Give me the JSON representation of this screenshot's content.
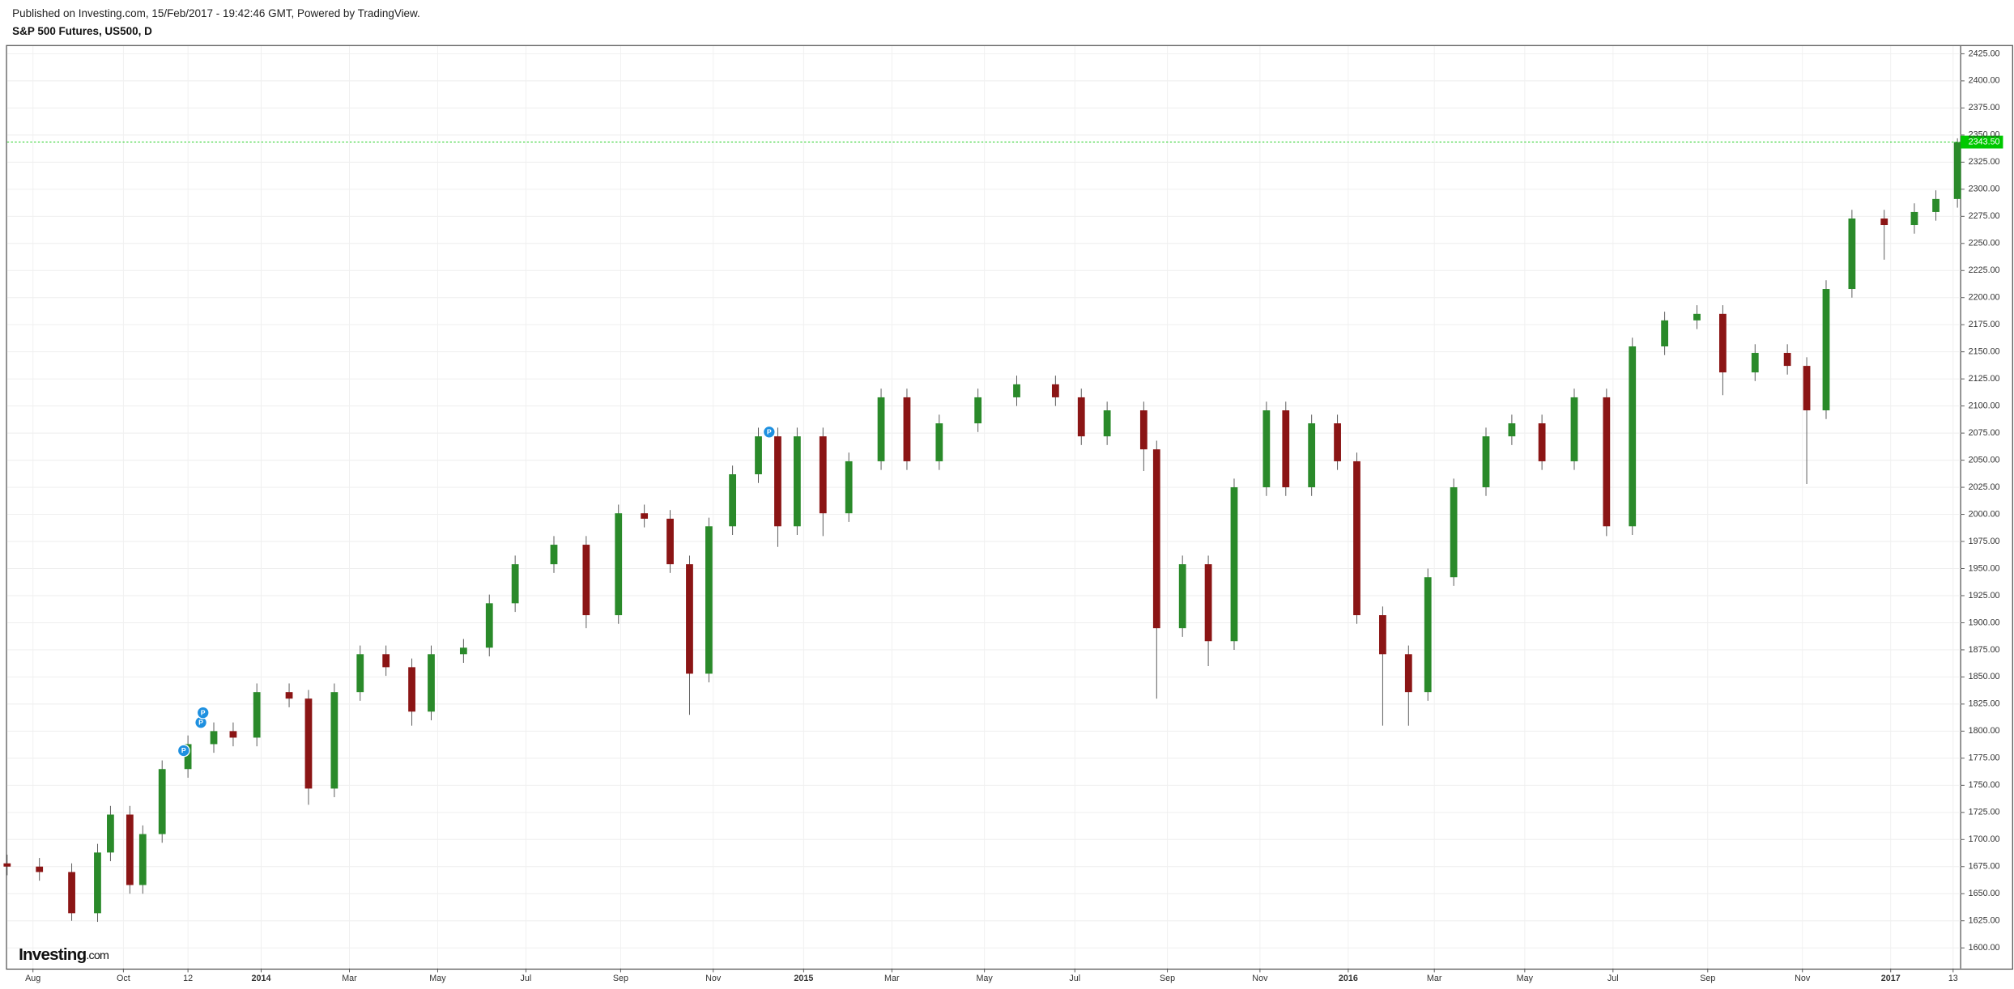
{
  "header": {
    "published": "Published on Investing.com, 15/Feb/2017 - 19:42:46 GMT, Powered by TradingView.",
    "symbol": "S&P 500 Futures, US500, D",
    "logo": "Investing",
    "logo_suffix": ".com"
  },
  "chart_data": {
    "type": "candlestick",
    "grid": true,
    "up_color": "#2a8a2a",
    "down_color": "#8b1515",
    "x": [
      0,
      15,
      30,
      42,
      48,
      57,
      63,
      72,
      84,
      96,
      105,
      116,
      131,
      140,
      152,
      164,
      176,
      188,
      197,
      212,
      224,
      236,
      254,
      269,
      284,
      296,
      308,
      317,
      326,
      337,
      349,
      358,
      367,
      379,
      391,
      406,
      418,
      433,
      451,
      469,
      487,
      499,
      511,
      528,
      534,
      546,
      558,
      570,
      585,
      594,
      606,
      618,
      627,
      639,
      651,
      660,
      672,
      687,
      699,
      713,
      728,
      743,
      755,
      770,
      785,
      797,
      812,
      827,
      836,
      845,
      857,
      872,
      886,
      896,
      906
    ],
    "open": [
      1678,
      1675,
      1670,
      1632,
      1688,
      1723,
      1658,
      1705,
      1765,
      1788,
      1800,
      1794,
      1836,
      1830,
      1747,
      1836,
      1871,
      1859,
      1818,
      1871,
      1877,
      1918,
      1954,
      1972,
      1907,
      2001,
      1996,
      1954,
      1853,
      1989,
      2037,
      2072,
      1989,
      2072,
      2001,
      2049,
      2108,
      2049,
      2084,
      2108,
      2120,
      2108,
      2072,
      2096,
      2060,
      1895,
      1954,
      1883,
      2025,
      2096,
      2025,
      2084,
      2049,
      1907,
      1871,
      1836,
      1942,
      2025,
      2072,
      2084,
      2049,
      2108,
      1989,
      2155,
      2179,
      2185,
      2131,
      2149,
      2137,
      2096,
      2208,
      2273,
      2267,
      2279,
      2291
    ],
    "high": [
      1686,
      1683,
      1678,
      1696,
      1731,
      1731,
      1713,
      1773,
      1796,
      1808,
      1808,
      1844,
      1844,
      1838,
      1844,
      1879,
      1879,
      1867,
      1879,
      1885,
      1926,
      1962,
      1980,
      1980,
      2009,
      2009,
      2004,
      1962,
      1997,
      2045,
      2080,
      2080,
      2080,
      2080,
      2057,
      2116,
      2116,
      2092,
      2116,
      2128,
      2128,
      2116,
      2104,
      2104,
      2068,
      1962,
      1962,
      2033,
      2104,
      2104,
      2092,
      2092,
      2057,
      1915,
      1879,
      1950,
      2033,
      2080,
      2092,
      2092,
      2116,
      2116,
      2163,
      2187,
      2193,
      2193,
      2157,
      2157,
      2145,
      2216,
      2281,
      2281,
      2287,
      2299,
      2347
    ],
    "low": [
      1667,
      1662,
      1625,
      1624,
      1680,
      1650,
      1650,
      1697,
      1757,
      1780,
      1786,
      1786,
      1822,
      1732,
      1739,
      1828,
      1851,
      1805,
      1810,
      1863,
      1869,
      1910,
      1946,
      1895,
      1899,
      1988,
      1946,
      1815,
      1845,
      1981,
      2029,
      1970,
      1981,
      1980,
      1993,
      2041,
      2041,
      2041,
      2076,
      2100,
      2100,
      2064,
      2064,
      2040,
      1830,
      1887,
      1860,
      1875,
      2017,
      2017,
      2017,
      2041,
      1899,
      1805,
      1805,
      1828,
      1934,
      2017,
      2064,
      2041,
      2041,
      1980,
      1981,
      2147,
      2171,
      2110,
      2123,
      2129,
      2028,
      2088,
      2200,
      2235,
      2259,
      2271,
      2283
    ],
    "close": [
      1675,
      1670,
      1632,
      1688,
      1723,
      1658,
      1705,
      1765,
      1788,
      1800,
      1794,
      1836,
      1830,
      1747,
      1836,
      1871,
      1859,
      1818,
      1871,
      1877,
      1918,
      1954,
      1972,
      1907,
      2001,
      1996,
      1954,
      1853,
      1989,
      2037,
      2072,
      1989,
      2072,
      2001,
      2049,
      2108,
      2049,
      2084,
      2108,
      2120,
      2108,
      2072,
      2096,
      2060,
      1895,
      1954,
      1883,
      2025,
      2096,
      2025,
      2084,
      2049,
      1907,
      1871,
      1836,
      1942,
      2025,
      2072,
      2084,
      2049,
      2108,
      1989,
      2155,
      2179,
      2185,
      2131,
      2149,
      2137,
      2096,
      2208,
      2273,
      2267,
      2279,
      2291,
      2343.5
    ],
    "xlim": [
      0,
      907.5
    ],
    "xticks": [
      {
        "value": 12,
        "label": "Aug"
      },
      {
        "value": 54,
        "label": "Oct"
      },
      {
        "value": 84,
        "label": "12"
      },
      {
        "value": 118,
        "label": "2014"
      },
      {
        "value": 159,
        "label": "Mar"
      },
      {
        "value": 200,
        "label": "May"
      },
      {
        "value": 241,
        "label": "Jul"
      },
      {
        "value": 285,
        "label": "Sep"
      },
      {
        "value": 328,
        "label": "Nov"
      },
      {
        "value": 370,
        "label": "2015"
      },
      {
        "value": 411,
        "label": "Mar"
      },
      {
        "value": 454,
        "label": "May"
      },
      {
        "value": 496,
        "label": "Jul"
      },
      {
        "value": 539,
        "label": "Sep"
      },
      {
        "value": 582,
        "label": "Nov"
      },
      {
        "value": 623,
        "label": "2016"
      },
      {
        "value": 663,
        "label": "Mar"
      },
      {
        "value": 705,
        "label": "May"
      },
      {
        "value": 746,
        "label": "Jul"
      },
      {
        "value": 790,
        "label": "Sep"
      },
      {
        "value": 834,
        "label": "Nov"
      },
      {
        "value": 875,
        "label": "2017"
      },
      {
        "value": 904,
        "label": "13"
      }
    ],
    "ylim": [
      1581,
      2432
    ],
    "yticks": [
      {
        "value": 1600,
        "label": "1600.00"
      },
      {
        "value": 1625,
        "label": "1625.00"
      },
      {
        "value": 1650,
        "label": "1650.00"
      },
      {
        "value": 1675,
        "label": "1675.00"
      },
      {
        "value": 1700,
        "label": "1700.00"
      },
      {
        "value": 1725,
        "label": "1725.00"
      },
      {
        "value": 1750,
        "label": "1750.00"
      },
      {
        "value": 1775,
        "label": "1775.00"
      },
      {
        "value": 1800,
        "label": "1800.00"
      },
      {
        "value": 1825,
        "label": "1825.00"
      },
      {
        "value": 1850,
        "label": "1850.00"
      },
      {
        "value": 1875,
        "label": "1875.00"
      },
      {
        "value": 1900,
        "label": "1900.00"
      },
      {
        "value": 1925,
        "label": "1925.00"
      },
      {
        "value": 1950,
        "label": "1950.00"
      },
      {
        "value": 1975,
        "label": "1975.00"
      },
      {
        "value": 2000,
        "label": "2000.00"
      },
      {
        "value": 2025,
        "label": "2025.00"
      },
      {
        "value": 2050,
        "label": "2050.00"
      },
      {
        "value": 2075,
        "label": "2075.00"
      },
      {
        "value": 2100,
        "label": "2100.00"
      },
      {
        "value": 2125,
        "label": "2125.00"
      },
      {
        "value": 2150,
        "label": "2150.00"
      },
      {
        "value": 2175,
        "label": "2175.00"
      },
      {
        "value": 2200,
        "label": "2200.00"
      },
      {
        "value": 2225,
        "label": "2225.00"
      },
      {
        "value": 2250,
        "label": "2250.00"
      },
      {
        "value": 2275,
        "label": "2275.00"
      },
      {
        "value": 2300,
        "label": "2300.00"
      },
      {
        "value": 2325,
        "label": "2325.00"
      },
      {
        "value": 2350,
        "label": "2350.00"
      },
      {
        "value": 2375,
        "label": "2375.00"
      },
      {
        "value": 2400,
        "label": "2400.00"
      },
      {
        "value": 2425,
        "label": "2425.00"
      }
    ],
    "last_price": {
      "value": 2343.5,
      "label": "2343.50",
      "color": "#00c800"
    },
    "markers": [
      {
        "x": 82,
        "y": 1782,
        "label": "P"
      },
      {
        "x": 90,
        "y": 1808,
        "label": "P"
      },
      {
        "x": 91,
        "y": 1817,
        "label": "P"
      },
      {
        "x": 354,
        "y": 2076,
        "label": "P"
      }
    ],
    "marker_color": "#1e90e0"
  }
}
